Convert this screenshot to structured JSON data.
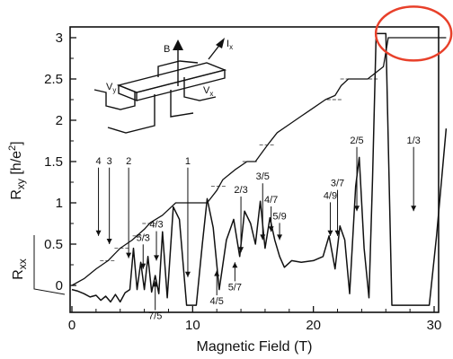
{
  "chart_data": {
    "type": "line",
    "xlabel": "Magnetic Field (T)",
    "ylabel": "R_xy [h/e²]",
    "ylabel_parts": {
      "main": "R",
      "sub": "xy",
      "unit": " [h/e",
      "sup": "2",
      "close": "]"
    },
    "second_ylabel_parts": {
      "main": "R",
      "sub": "xx"
    },
    "xlim": [
      0,
      31
    ],
    "ylim": [
      -0.25,
      3.1
    ],
    "x_ticks": [
      {
        "value": 0,
        "label": "0"
      },
      {
        "value": 10,
        "label": "10"
      },
      {
        "value": 20,
        "label": "20"
      },
      {
        "value": 30,
        "label": "30"
      }
    ],
    "y_ticks": [
      {
        "value": 0,
        "label": "0"
      },
      {
        "value": 0.5,
        "label": "0.5"
      },
      {
        "value": 1,
        "label": "1"
      },
      {
        "value": 1.5,
        "label": "1.5"
      },
      {
        "value": 2,
        "label": "2"
      },
      {
        "value": 2.5,
        "label": "2.5"
      },
      {
        "value": 3,
        "label": "3"
      }
    ],
    "series": [
      {
        "key": "rxy",
        "x": [
          0,
          1,
          2,
          3,
          4,
          5,
          6,
          6.5,
          7.5,
          8.6,
          9,
          10,
          11.2,
          12,
          12.5,
          13.5,
          14.5,
          15.2,
          15.7,
          16.3,
          17,
          18,
          19,
          20,
          21,
          21.8,
          22.3,
          22.9,
          23.5,
          24.5,
          25.8,
          26.2,
          27,
          31
        ],
        "y": [
          0,
          0.08,
          0.2,
          0.3,
          0.45,
          0.55,
          0.68,
          0.76,
          0.85,
          1.0,
          1.0,
          1.0,
          1.0,
          1.15,
          1.28,
          1.4,
          1.5,
          1.5,
          1.6,
          1.72,
          1.85,
          1.95,
          2.05,
          2.15,
          2.25,
          2.3,
          2.42,
          2.5,
          2.5,
          2.5,
          2.65,
          3.0,
          3.0,
          3.0
        ]
      },
      {
        "key": "rxx",
        "x": [
          0,
          0.5,
          1,
          1.5,
          2,
          2.4,
          2.8,
          3.2,
          3.6,
          4.0,
          4.4,
          4.8,
          5.1,
          5.4,
          5.7,
          6.0,
          6.3,
          6.6,
          6.9,
          7.2,
          7.5,
          7.9,
          8.4,
          8.9,
          9.5,
          10.3,
          10.8,
          11.2,
          11.7,
          12.2,
          12.8,
          13.4,
          13.9,
          14.3,
          14.8,
          15.2,
          15.6,
          16.0,
          16.4,
          16.8,
          17.2,
          17.6,
          18.2,
          19,
          20,
          20.8,
          21.3,
          21.8,
          22.2,
          22.6,
          23.0,
          23.5,
          23.8,
          24.2,
          24.6,
          24.9,
          25.2,
          25.6,
          26.0,
          26.5,
          27.0,
          27.8,
          28.8,
          29.6,
          30.2,
          31
        ],
        "y": [
          -0.05,
          -0.07,
          -0.1,
          -0.14,
          -0.12,
          -0.18,
          -0.13,
          -0.2,
          -0.11,
          -0.2,
          -0.09,
          -0.05,
          0.45,
          -0.05,
          0.28,
          -0.05,
          0.35,
          -0.08,
          0.12,
          -0.1,
          0.65,
          -0.15,
          0.95,
          0.8,
          -0.24,
          -0.24,
          0.5,
          1.05,
          0.7,
          -0.05,
          0.55,
          0.8,
          0.35,
          0.9,
          0.75,
          0.5,
          1.02,
          0.45,
          0.82,
          0.55,
          0.35,
          0.22,
          0.3,
          0.28,
          0.3,
          0.35,
          0.6,
          0.2,
          0.72,
          0.55,
          -0.1,
          1.2,
          1.55,
          0.45,
          -0.15,
          1.3,
          3.05,
          3.05,
          3.05,
          -0.24,
          -0.24,
          -0.24,
          -0.24,
          -0.24,
          0.6,
          1.9
        ]
      }
    ],
    "plateau_markers": [
      {
        "x": 3,
        "y": 0.3
      },
      {
        "x": 4.2,
        "y": 0.45
      },
      {
        "x": 5.7,
        "y": 0.6
      },
      {
        "x": 6.5,
        "y": 0.75
      },
      {
        "x": 9.5,
        "y": 1.0
      },
      {
        "x": 12.2,
        "y": 1.2
      },
      {
        "x": 14.8,
        "y": 1.5
      },
      {
        "x": 16.2,
        "y": 1.7
      },
      {
        "x": 21.8,
        "y": 2.25
      },
      {
        "x": 22.9,
        "y": 2.5
      },
      {
        "x": 24.8,
        "y": 2.5
      },
      {
        "x": 27.8,
        "y": 3.0
      }
    ],
    "annotations_top": [
      {
        "label": "4",
        "x": 2.2,
        "y_text": 1.47,
        "y_arrow": 0.6
      },
      {
        "label": "3",
        "x": 3.1,
        "y_text": 1.47,
        "y_arrow": 0.5
      },
      {
        "label": "2",
        "x": 4.7,
        "y_text": 1.47,
        "y_arrow": 0.33
      },
      {
        "label": "1",
        "x": 9.6,
        "y_text": 1.47,
        "y_arrow": 0.1
      },
      {
        "label": "5/3",
        "x": 5.9,
        "y_text": 0.54,
        "y_arrow": 0.2
      },
      {
        "label": "4/3",
        "x": 7.0,
        "y_text": 0.7,
        "y_arrow": 0.3
      },
      {
        "label": "2/3",
        "x": 14.0,
        "y_text": 1.12,
        "y_arrow": 0.4
      },
      {
        "label": "3/5",
        "x": 15.8,
        "y_text": 1.28,
        "y_arrow": 0.55
      },
      {
        "label": "4/7",
        "x": 16.5,
        "y_text": 1.0,
        "y_arrow": 0.65
      },
      {
        "label": "5/9",
        "x": 17.2,
        "y_text": 0.8,
        "y_arrow": 0.55
      },
      {
        "label": "3/7",
        "x": 22.0,
        "y_text": 1.2,
        "y_arrow": 0.6
      },
      {
        "label": "4/9",
        "x": 21.4,
        "y_text": 1.05,
        "y_arrow": 0.6
      },
      {
        "label": "2/5",
        "x": 23.6,
        "y_text": 1.72,
        "y_arrow": 0.9
      },
      {
        "label": "1/3",
        "x": 28.3,
        "y_text": 1.72,
        "y_arrow": 0.9
      }
    ],
    "annotations_bottom": [
      {
        "label": "7/5",
        "x": 6.9,
        "y_text": -0.3,
        "y_arrow": 0.05
      },
      {
        "label": "4/5",
        "x": 12.0,
        "y_text": -0.12,
        "y_arrow": 0.18
      },
      {
        "label": "5/7",
        "x": 13.5,
        "y_text": 0.05,
        "y_arrow": 0.28
      }
    ],
    "schematic": {
      "b_label": "B",
      "ix_label": "I",
      "ix_sub": "x",
      "vy_label": "V",
      "vy_sub": "y",
      "vx_label": "V",
      "vx_sub": "x"
    },
    "highlight": {
      "x_center": 28.3,
      "y_center": 3.05,
      "color": "#e8402a"
    },
    "colors": {
      "line": "#111111",
      "highlight": "#e8402a"
    }
  }
}
